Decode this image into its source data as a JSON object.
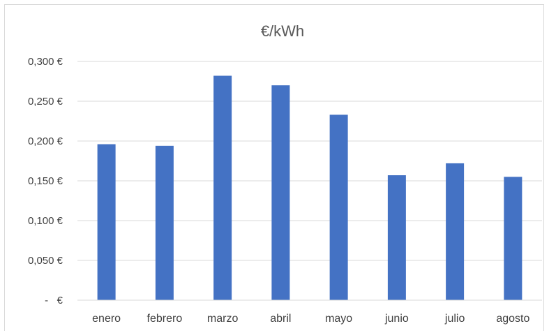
{
  "chart_data": {
    "type": "bar",
    "title": "€/kWh",
    "xlabel": "",
    "ylabel": "",
    "categories": [
      "enero",
      "febrero",
      "marzo",
      "abril",
      "mayo",
      "junio",
      "julio",
      "agosto"
    ],
    "values": [
      0.196,
      0.194,
      0.282,
      0.27,
      0.233,
      0.157,
      0.172,
      0.155
    ],
    "ylim": [
      0,
      0.3
    ],
    "yticks": [
      0,
      0.05,
      0.1,
      0.15,
      0.2,
      0.25,
      0.3
    ],
    "ytick_labels": [
      "-   €",
      "0,050 €",
      "0,100 €",
      "0,150 €",
      "0,200 €",
      "0,250 €",
      "0,300 €"
    ],
    "grid": true,
    "legend": "none",
    "colors": {
      "bar": "#4472c4",
      "grid": "#d9d9d9",
      "title": "#595959",
      "text": "#404040"
    }
  }
}
